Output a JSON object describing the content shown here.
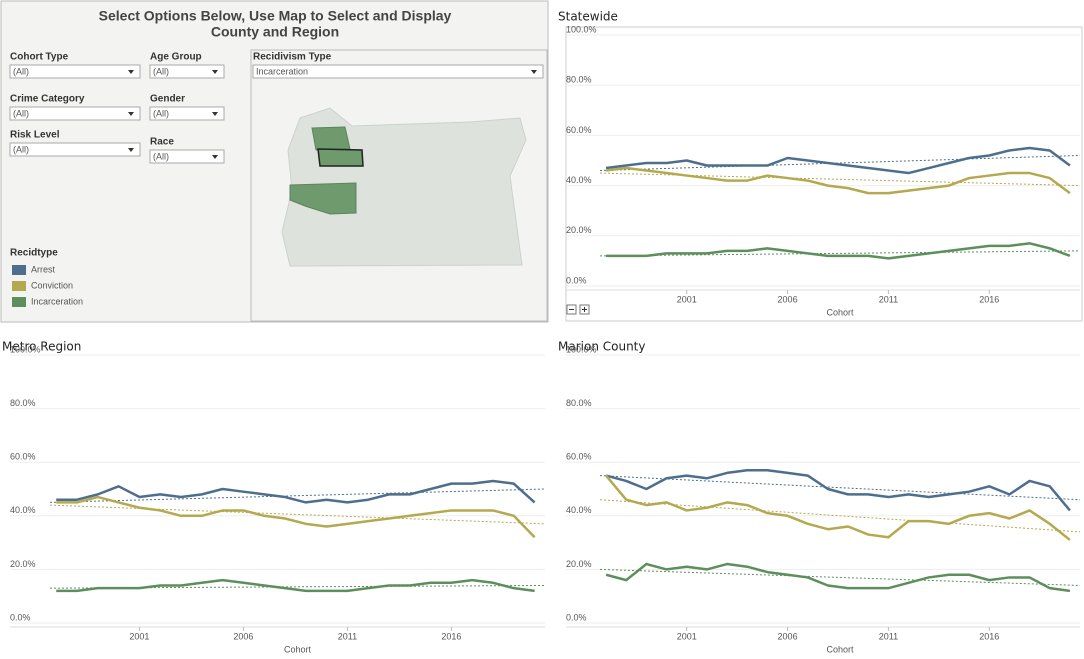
{
  "panel": {
    "title_line1": "Select Options Below, Use Map to Select and Display",
    "title_line2": "County and  Region",
    "filters": [
      {
        "label": "Cohort Type",
        "value": "(All)"
      },
      {
        "label": "Age Group",
        "value": "(All)"
      },
      {
        "label": "Crime Category",
        "value": "(All)"
      },
      {
        "label": "Gender",
        "value": "(All)"
      },
      {
        "label": "Risk Level",
        "value": "(All)"
      },
      {
        "label": "Race",
        "value": "(All)"
      },
      {
        "label": "Recidivism Type",
        "value": "Incarceration"
      }
    ],
    "legend": {
      "title": "Recidtype",
      "items": [
        {
          "name": "Arrest",
          "color": "#4e6e8e"
        },
        {
          "name": "Conviction",
          "color": "#b5a950"
        },
        {
          "name": "Incarceration",
          "color": "#5d8f5d"
        }
      ]
    }
  },
  "chart_data": [
    {
      "type": "line",
      "title": "Statewide",
      "x_label": "Cohort",
      "x": [
        1997,
        1998,
        1999,
        2000,
        2001,
        2002,
        2003,
        2004,
        2005,
        2006,
        2007,
        2008,
        2009,
        2010,
        2011,
        2012,
        2013,
        2014,
        2015,
        2016,
        2017,
        2018,
        2019,
        2020
      ],
      "xlim": [
        1996.7,
        2020.5
      ],
      "xticks": [
        2001,
        2006,
        2011,
        2016
      ],
      "ylim": [
        0,
        100
      ],
      "yticks": [
        {
          "value": 0,
          "label": "0.0%"
        },
        {
          "value": 20,
          "label": "20.0%"
        },
        {
          "value": 40,
          "label": "40.0%"
        },
        {
          "value": 60,
          "label": "60.0%"
        },
        {
          "value": 80,
          "label": "80.0%"
        },
        {
          "value": 100,
          "label": "100.0%"
        }
      ],
      "series": [
        {
          "color": "#4e6e8e",
          "values": [
            47,
            48,
            49,
            49,
            50,
            48,
            48,
            48,
            48,
            51,
            50,
            49,
            48,
            47,
            46,
            45,
            47,
            49,
            51,
            52,
            54,
            55,
            54,
            48
          ],
          "trend": [
            46,
            52
          ]
        },
        {
          "color": "#b5a950",
          "values": [
            46,
            47,
            46,
            45,
            44,
            43,
            42,
            42,
            44,
            43,
            42,
            40,
            39,
            37,
            37,
            38,
            39,
            40,
            43,
            44,
            45,
            45,
            43,
            37
          ],
          "trend": [
            45,
            40
          ]
        },
        {
          "color": "#5d8f5d",
          "values": [
            12,
            12,
            12,
            13,
            13,
            13,
            14,
            14,
            15,
            14,
            13,
            12,
            12,
            12,
            11,
            12,
            13,
            14,
            15,
            16,
            16,
            17,
            15,
            12
          ],
          "trend": [
            12,
            14
          ]
        }
      ]
    },
    {
      "type": "line",
      "title": "Metro Region",
      "x_label": "Cohort",
      "x": [
        1997,
        1998,
        1999,
        2000,
        2001,
        2002,
        2003,
        2004,
        2005,
        2006,
        2007,
        2008,
        2009,
        2010,
        2011,
        2012,
        2013,
        2014,
        2015,
        2016,
        2017,
        2018,
        2019,
        2020
      ],
      "xlim": [
        1996.7,
        2020.5
      ],
      "xticks": [
        2001,
        2006,
        2011,
        2016
      ],
      "ylim": [
        0,
        100
      ],
      "yticks": [
        {
          "value": 0,
          "label": "0.0%"
        },
        {
          "value": 20,
          "label": "20.0%"
        },
        {
          "value": 40,
          "label": "40.0%"
        },
        {
          "value": 60,
          "label": "60.0%"
        },
        {
          "value": 80,
          "label": "80.0%"
        },
        {
          "value": 100,
          "label": "100.0%"
        }
      ],
      "series": [
        {
          "color": "#4e6e8e",
          "values": [
            46,
            46,
            48,
            51,
            47,
            48,
            47,
            48,
            50,
            49,
            48,
            47,
            45,
            46,
            45,
            46,
            48,
            48,
            50,
            52,
            52,
            53,
            52,
            45
          ],
          "trend": [
            45,
            50
          ]
        },
        {
          "color": "#b5a950",
          "values": [
            45,
            45,
            47,
            45,
            43,
            42,
            40,
            40,
            42,
            42,
            40,
            39,
            37,
            36,
            37,
            38,
            39,
            40,
            41,
            42,
            42,
            42,
            40,
            32
          ],
          "trend": [
            44,
            37
          ]
        },
        {
          "color": "#5d8f5d",
          "values": [
            12,
            12,
            13,
            13,
            13,
            14,
            14,
            15,
            16,
            15,
            14,
            13,
            12,
            12,
            12,
            13,
            14,
            14,
            15,
            15,
            16,
            15,
            13,
            12
          ],
          "trend": [
            13,
            14
          ]
        }
      ]
    },
    {
      "type": "line",
      "title": "Marion County",
      "x_label": "Cohort",
      "x": [
        1997,
        1998,
        1999,
        2000,
        2001,
        2002,
        2003,
        2004,
        2005,
        2006,
        2007,
        2008,
        2009,
        2010,
        2011,
        2012,
        2013,
        2014,
        2015,
        2016,
        2017,
        2018,
        2019,
        2020
      ],
      "xlim": [
        1996.7,
        2020.5
      ],
      "xticks": [
        2001,
        2006,
        2011,
        2016
      ],
      "ylim": [
        0,
        100
      ],
      "yticks": [
        {
          "value": 0,
          "label": "0.0%"
        },
        {
          "value": 20,
          "label": "20.0%"
        },
        {
          "value": 40,
          "label": "40.0%"
        },
        {
          "value": 60,
          "label": "60.0%"
        },
        {
          "value": 80,
          "label": "80.0%"
        },
        {
          "value": 100,
          "label": "100.0%"
        }
      ],
      "series": [
        {
          "color": "#4e6e8e",
          "values": [
            55,
            53,
            50,
            54,
            55,
            54,
            56,
            57,
            57,
            56,
            55,
            50,
            48,
            48,
            47,
            48,
            47,
            48,
            49,
            51,
            48,
            53,
            51,
            42
          ],
          "trend": [
            55,
            46
          ]
        },
        {
          "color": "#b5a950",
          "values": [
            55,
            46,
            44,
            45,
            42,
            43,
            45,
            44,
            41,
            40,
            37,
            35,
            36,
            33,
            32,
            38,
            38,
            37,
            40,
            41,
            39,
            42,
            37,
            31
          ],
          "trend": [
            46,
            34
          ]
        },
        {
          "color": "#5d8f5d",
          "values": [
            18,
            16,
            22,
            20,
            21,
            20,
            22,
            21,
            19,
            18,
            17,
            14,
            13,
            13,
            13,
            15,
            17,
            18,
            18,
            16,
            17,
            17,
            13,
            12
          ],
          "trend": [
            20,
            14
          ]
        }
      ]
    }
  ]
}
